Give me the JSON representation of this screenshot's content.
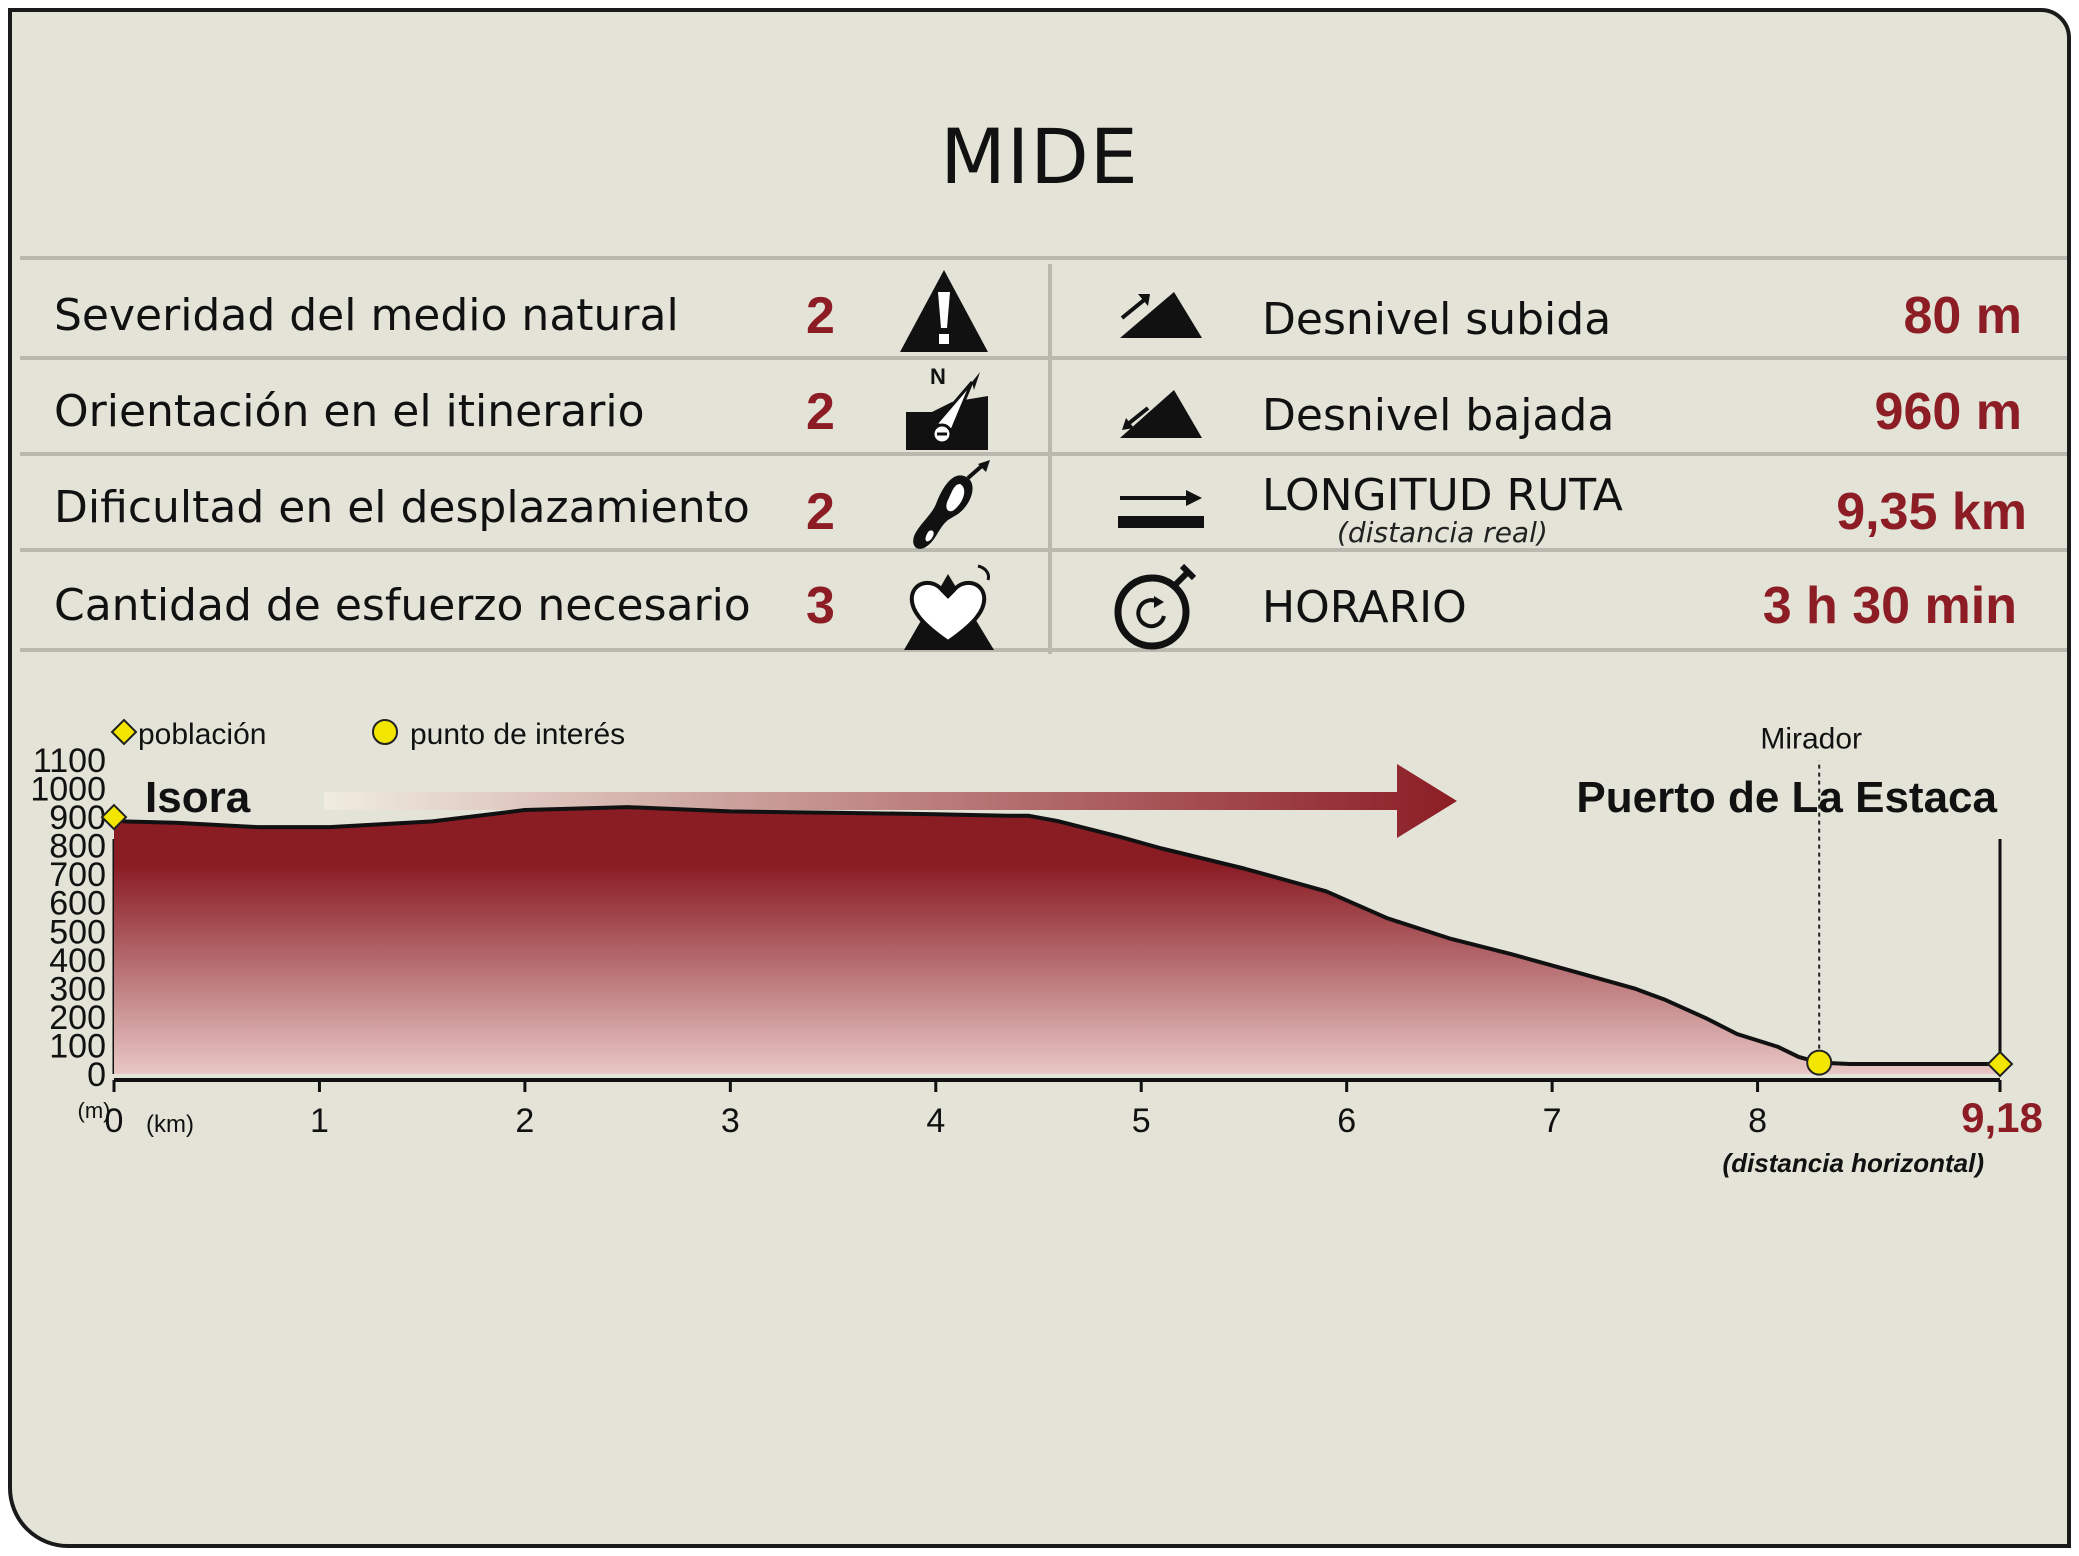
{
  "title": "MIDE",
  "mide_rows": [
    {
      "label": "Severidad del medio natural",
      "value": "2",
      "icon": "warning-triangle-icon"
    },
    {
      "label": "Orientación en el itinerario",
      "value": "2",
      "icon": "compass-orientation-icon"
    },
    {
      "label": "Dificultad en el desplazamiento",
      "value": "2",
      "icon": "boot-sole-icon"
    },
    {
      "label": "Cantidad de esfuerzo necesario",
      "value": "3",
      "icon": "heart-effort-icon"
    }
  ],
  "stats": [
    {
      "label": "Desnivel subida",
      "value": "80 m",
      "icon": "ascent-slope-icon"
    },
    {
      "label": "Desnivel bajada",
      "value": "960 m",
      "icon": "descent-slope-icon"
    },
    {
      "label": "LONGITUD RUTA",
      "sublabel": "(distancia real)",
      "value": "9,35 km",
      "icon": "distance-arrow-icon"
    },
    {
      "label": "HORARIO",
      "value": "3 h 30 min",
      "icon": "stopwatch-icon"
    }
  ],
  "legend": [
    {
      "label": "población",
      "marker": "diamond",
      "color": "#f2e600"
    },
    {
      "label": "punto de interés",
      "marker": "circle",
      "color": "#f2e600"
    }
  ],
  "colors": {
    "accent": "#8c1d25",
    "background": "#e3e3d8",
    "marker": "#f2e600"
  },
  "chart_data": {
    "type": "area",
    "start_label": "Isora",
    "end_label": "Puerto de La Estaca",
    "y_unit": "(m)",
    "x_unit": "(km)",
    "x_note": "(distancia horizontal)",
    "x_end_label": "9,18",
    "xlim": [
      0,
      9.18
    ],
    "ylim": [
      0,
      1100
    ],
    "x_ticks": [
      0,
      1,
      2,
      3,
      4,
      5,
      6,
      7,
      8
    ],
    "y_ticks": [
      0,
      100,
      200,
      300,
      400,
      500,
      600,
      700,
      800,
      900,
      1000,
      1100
    ],
    "profile": [
      {
        "x": 0,
        "y": 900
      },
      {
        "x": 0.05,
        "y": 885
      },
      {
        "x": 0.3,
        "y": 880
      },
      {
        "x": 0.7,
        "y": 865
      },
      {
        "x": 1.05,
        "y": 865
      },
      {
        "x": 1.3,
        "y": 875
      },
      {
        "x": 1.55,
        "y": 885
      },
      {
        "x": 2.0,
        "y": 925
      },
      {
        "x": 2.5,
        "y": 935
      },
      {
        "x": 3.0,
        "y": 920
      },
      {
        "x": 3.5,
        "y": 915
      },
      {
        "x": 4.0,
        "y": 910
      },
      {
        "x": 4.35,
        "y": 905
      },
      {
        "x": 4.45,
        "y": 905
      },
      {
        "x": 4.6,
        "y": 885
      },
      {
        "x": 4.9,
        "y": 830
      },
      {
        "x": 5.1,
        "y": 790
      },
      {
        "x": 5.5,
        "y": 720
      },
      {
        "x": 5.9,
        "y": 640
      },
      {
        "x": 6.2,
        "y": 545
      },
      {
        "x": 6.5,
        "y": 475
      },
      {
        "x": 6.8,
        "y": 420
      },
      {
        "x": 7.1,
        "y": 360
      },
      {
        "x": 7.4,
        "y": 300
      },
      {
        "x": 7.55,
        "y": 260
      },
      {
        "x": 7.75,
        "y": 195
      },
      {
        "x": 7.9,
        "y": 140
      },
      {
        "x": 8.1,
        "y": 95
      },
      {
        "x": 8.2,
        "y": 60
      },
      {
        "x": 8.3,
        "y": 40
      },
      {
        "x": 8.45,
        "y": 35
      },
      {
        "x": 9.18,
        "y": 35
      }
    ],
    "markers": [
      {
        "x": 0,
        "y": 900,
        "kind": "población"
      },
      {
        "x": 8.3,
        "y": 40,
        "kind": "punto de interés",
        "label": "Mirador"
      },
      {
        "x": 9.18,
        "y": 35,
        "kind": "población"
      }
    ]
  }
}
